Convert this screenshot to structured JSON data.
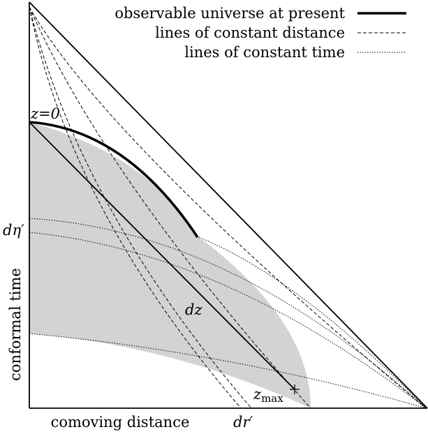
{
  "legend": {
    "observable": "observable universe at present",
    "distance": "lines of constant distance",
    "time": "lines of constant time"
  },
  "axes": {
    "xlabel": "comoving distance",
    "ylabel": "conformal time"
  },
  "labels": {
    "z0": "z=0",
    "deta": "dη′",
    "dz": "dz",
    "zmax": "z",
    "zmax_sub": "max",
    "dr": "dr′"
  },
  "colors": {
    "shade": "#d3d3d3",
    "line": "#000000"
  }
}
